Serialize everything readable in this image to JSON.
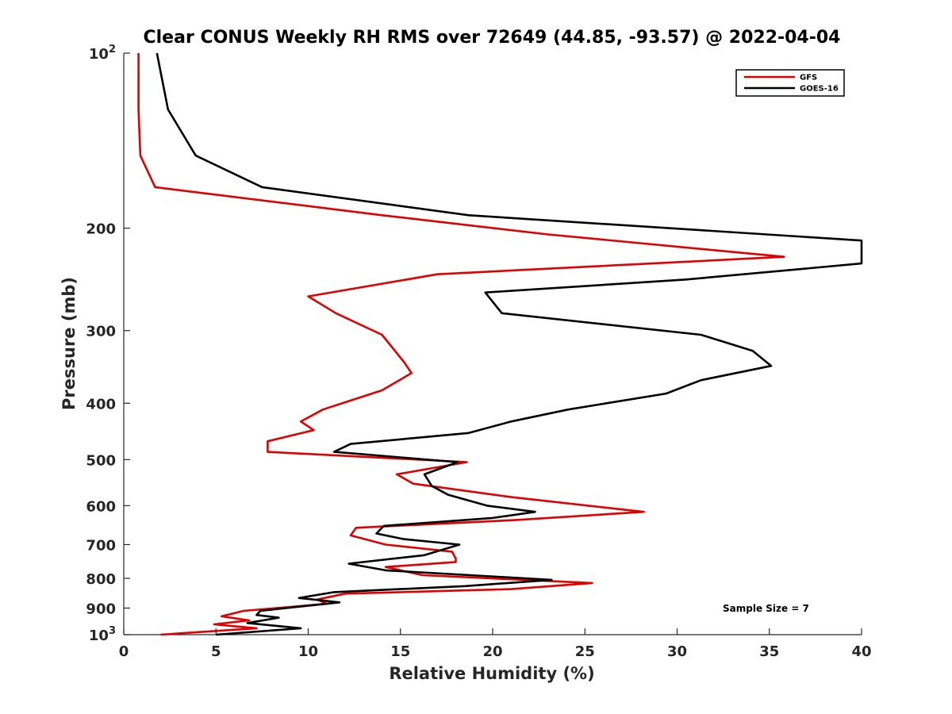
{
  "chart_data": {
    "type": "line",
    "title": "Clear CONUS Weekly RH RMS over 72649 (44.85, -93.57) @ 2022-04-04",
    "xlabel": "Relative Humidity (%)",
    "ylabel": "Pressure (mb)",
    "xlim": [
      0,
      40
    ],
    "ylim": [
      100,
      1000
    ],
    "y_scale": "log",
    "y_reversed": true,
    "x_ticks": [
      0,
      5,
      10,
      15,
      20,
      25,
      30,
      35,
      40
    ],
    "y_ticks": [
      {
        "value": 100,
        "label": "10",
        "sup": "2"
      },
      {
        "value": 200,
        "label": "200",
        "sup": ""
      },
      {
        "value": 300,
        "label": "300",
        "sup": ""
      },
      {
        "value": 400,
        "label": "400",
        "sup": ""
      },
      {
        "value": 500,
        "label": "500",
        "sup": ""
      },
      {
        "value": 600,
        "label": "600",
        "sup": ""
      },
      {
        "value": 700,
        "label": "700",
        "sup": ""
      },
      {
        "value": 800,
        "label": "800",
        "sup": ""
      },
      {
        "value": 900,
        "label": "900",
        "sup": ""
      },
      {
        "value": 1000,
        "label": "10",
        "sup": "3"
      }
    ],
    "grid": false,
    "legend_position": "top-right",
    "annotation": "Sample Size = 7",
    "series": [
      {
        "name": "GFS",
        "color": "#e00000",
        "points": [
          [
            0.8,
            100
          ],
          [
            0.8,
            125
          ],
          [
            0.9,
            150
          ],
          [
            1.7,
            170
          ],
          [
            14,
            190
          ],
          [
            23,
            205
          ],
          [
            35.8,
            224
          ],
          [
            17,
            240
          ],
          [
            10,
            262
          ],
          [
            11.5,
            280
          ],
          [
            14,
            305
          ],
          [
            15.2,
            340
          ],
          [
            15.6,
            355
          ],
          [
            14,
            380
          ],
          [
            10.8,
            410
          ],
          [
            9.6,
            430
          ],
          [
            10.3,
            445
          ],
          [
            7.8,
            465
          ],
          [
            7.8,
            485
          ],
          [
            18.6,
            505
          ],
          [
            14.8,
            530
          ],
          [
            15.7,
            550
          ],
          [
            21,
            580
          ],
          [
            28.2,
            615
          ],
          [
            21.3,
            635
          ],
          [
            12.6,
            655
          ],
          [
            12.3,
            675
          ],
          [
            14.2,
            700
          ],
          [
            17.8,
            720
          ],
          [
            18,
            740
          ],
          [
            18,
            750
          ],
          [
            14.2,
            765
          ],
          [
            16.2,
            790
          ],
          [
            25.4,
            815
          ],
          [
            21,
            835
          ],
          [
            12,
            850
          ],
          [
            10.5,
            870
          ],
          [
            11,
            885
          ],
          [
            6.5,
            910
          ],
          [
            5.3,
            930
          ],
          [
            6.8,
            945
          ],
          [
            4.9,
            960
          ],
          [
            7.2,
            975
          ],
          [
            2,
            1000
          ]
        ]
      },
      {
        "name": "GOES-16",
        "color": "#000000",
        "points": [
          [
            1.8,
            100
          ],
          [
            2.4,
            125
          ],
          [
            3.9,
            150
          ],
          [
            7.5,
            170
          ],
          [
            18.7,
            190
          ],
          [
            40,
            210
          ],
          [
            40,
            230
          ],
          [
            30.5,
            245
          ],
          [
            19.6,
            258
          ],
          [
            20.5,
            280
          ],
          [
            31.3,
            305
          ],
          [
            34.1,
            325
          ],
          [
            35.1,
            345
          ],
          [
            31.3,
            365
          ],
          [
            29.4,
            385
          ],
          [
            24.1,
            410
          ],
          [
            21,
            430
          ],
          [
            18.7,
            450
          ],
          [
            12.3,
            470
          ],
          [
            11.4,
            485
          ],
          [
            18.1,
            505
          ],
          [
            16.3,
            530
          ],
          [
            16.7,
            555
          ],
          [
            17.6,
            575
          ],
          [
            19.7,
            600
          ],
          [
            22.3,
            615
          ],
          [
            20,
            630
          ],
          [
            14.1,
            650
          ],
          [
            13.7,
            670
          ],
          [
            15.2,
            685
          ],
          [
            18.2,
            700
          ],
          [
            16.3,
            730
          ],
          [
            12.2,
            755
          ],
          [
            14.2,
            775
          ],
          [
            23.2,
            805
          ],
          [
            18.5,
            825
          ],
          [
            11.4,
            845
          ],
          [
            9.5,
            865
          ],
          [
            11.7,
            880
          ],
          [
            7.4,
            910
          ],
          [
            7.2,
            925
          ],
          [
            8.4,
            935
          ],
          [
            6.7,
            955
          ],
          [
            9.6,
            975
          ],
          [
            5,
            1000
          ]
        ]
      }
    ]
  }
}
